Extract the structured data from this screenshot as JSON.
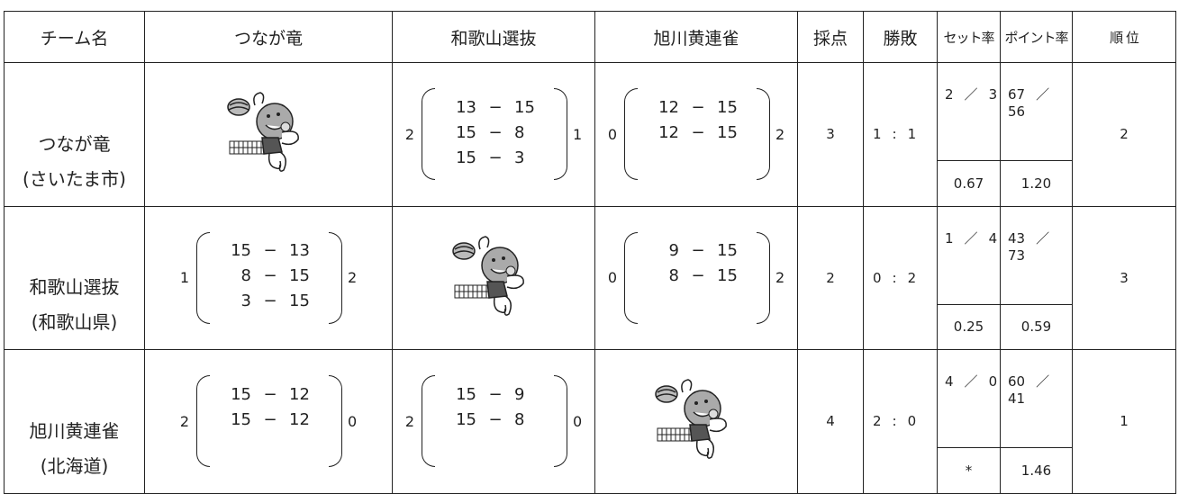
{
  "table": {
    "headers": [
      "チーム名",
      "つなが竜",
      "和歌山選抜",
      "旭川黄連雀",
      "採点",
      "勝敗",
      "セット率",
      "ポイント率",
      "順 位"
    ],
    "separators": {
      "score": "−",
      "ratio": "／",
      "record": ":"
    },
    "rows": [
      {
        "name": "つなが竜",
        "region": "(さいたま市)",
        "matches": [
          null,
          {
            "won": 2,
            "games": [
              [
                13,
                15
              ],
              [
                15,
                8
              ],
              [
                15,
                3
              ]
            ],
            "lost": 1
          },
          {
            "won": 0,
            "games": [
              [
                12,
                15
              ],
              [
                12,
                15
              ]
            ],
            "lost": 2
          }
        ],
        "points": 3,
        "record": [
          1,
          1
        ],
        "sets": [
          2,
          3
        ],
        "set_rate": "0.67",
        "point_totals": [
          67,
          56
        ],
        "point_rate": "1.20",
        "rank": 2
      },
      {
        "name": "和歌山選抜",
        "region": "(和歌山県)",
        "matches": [
          {
            "won": 1,
            "games": [
              [
                15,
                13
              ],
              [
                8,
                15
              ],
              [
                3,
                15
              ]
            ],
            "lost": 2
          },
          null,
          {
            "won": 0,
            "games": [
              [
                9,
                15
              ],
              [
                8,
                15
              ]
            ],
            "lost": 2
          }
        ],
        "points": 2,
        "record": [
          0,
          2
        ],
        "sets": [
          1,
          4
        ],
        "set_rate": "0.25",
        "point_totals": [
          43,
          73
        ],
        "point_rate": "0.59",
        "rank": 3
      },
      {
        "name": "旭川黄連雀",
        "region": "(北海道)",
        "matches": [
          {
            "won": 2,
            "games": [
              [
                15,
                12
              ],
              [
                15,
                12
              ]
            ],
            "lost": 0
          },
          {
            "won": 2,
            "games": [
              [
                15,
                9
              ],
              [
                15,
                8
              ]
            ],
            "lost": 0
          },
          null
        ],
        "points": 4,
        "record": [
          2,
          0
        ],
        "sets": [
          4,
          0
        ],
        "set_rate": "*",
        "point_totals": [
          60,
          41
        ],
        "point_rate": "1.46",
        "rank": 1
      }
    ]
  }
}
